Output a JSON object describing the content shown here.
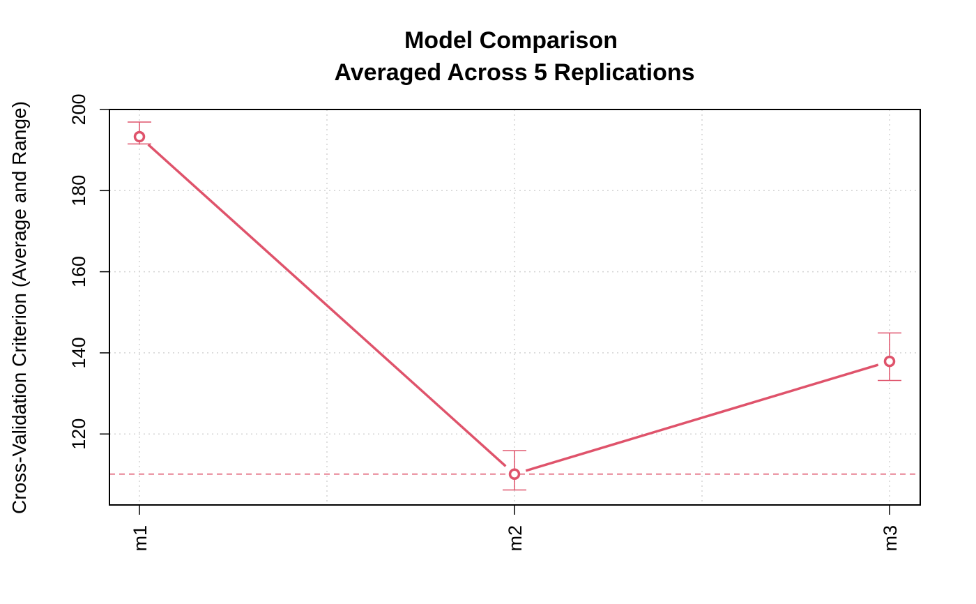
{
  "chart_data": {
    "type": "line",
    "title_line1": "Model Comparison",
    "title_line2": "Averaged Across 5 Replications",
    "xlabel": "",
    "ylabel": "Cross-Validation Criterion (Average and Range)",
    "categories": [
      "m1",
      "m2",
      "m3"
    ],
    "series": [
      {
        "average": [
          193.3,
          110.1,
          137.9
        ],
        "min": [
          191.5,
          106.2,
          133.2
        ],
        "max": [
          196.9,
          115.9,
          144.9
        ],
        "color": "#DF536B"
      }
    ],
    "reference_line": {
      "value": 110.1,
      "style": "dashed",
      "color": "#DF536B"
    },
    "ylim": [
      102.5,
      200
    ],
    "yticks": [
      120,
      140,
      160,
      180,
      200
    ],
    "grid": true
  }
}
